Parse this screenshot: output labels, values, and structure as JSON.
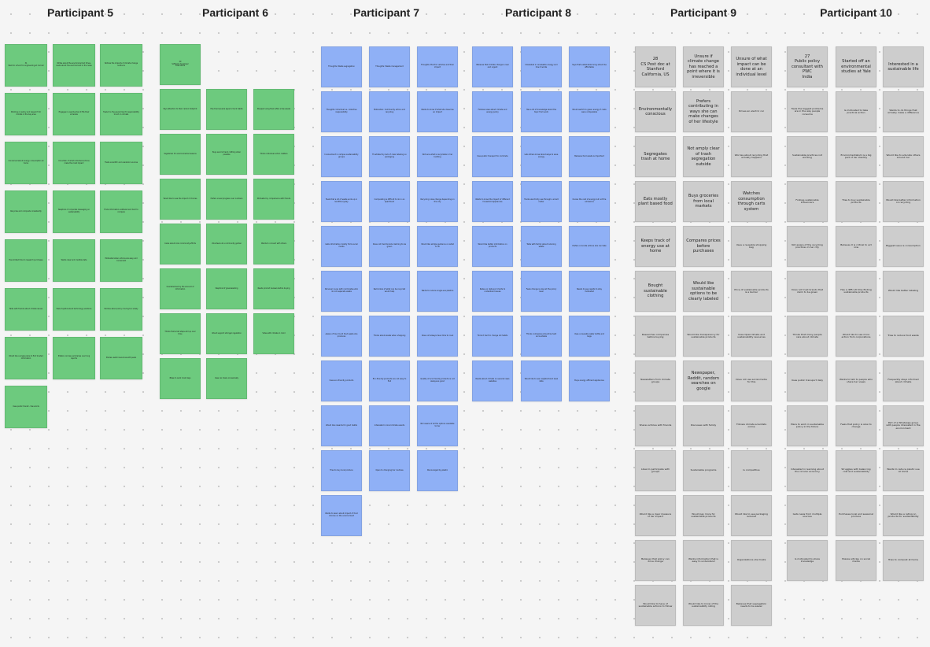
{
  "board": {
    "columns": [
      {
        "title": "Participant 5",
        "color": "#6dca7e",
        "notes": [
          [
            "31",
            "Went to school for engineering at Cornell",
            "Writes about the environment at times, reads about the environment in the news",
            "Notices the impacts of climate change outdoors"
          ],
          [
            "Working on policy and research for climate in the bay area",
            "Engages in events when it fits their schedule",
            "Feels it is the government's responsibility to act on climate"
          ],
          [
            "Concerned about energy consumption at home",
            "Uncertain of what individual actions make the most impact",
            "Trusts scientific and academic sources"
          ],
          [
            "Recycles and composts consistently",
            "Skeptical of corporate messaging on sustainability",
            "Finds information scattered and hard to compare"
          ],
          [
            "Has limited time to research purchases",
            "Wants clear and credible data",
            "Motivated when actions are easy and convenient"
          ],
          [
            "Talks with friends about climate issues",
            "Feels hopeful about technology solutions",
            "Worries about policy moving too slowly"
          ],
          [
            "Would like a single place to find trusted information",
            "Prefers concise summaries over long reports",
            "Shares useful resources with peers"
          ],
          [
            "Uses public transit - few words"
          ]
        ]
      },
      {
        "title": "Participant 6",
        "color": "#6dca7e",
        "notes": [
          [
            "29",
            "Software developer",
            "Lives alone"
          ],
          [
            "Pays attention to their carbon footprint",
            "Has tried several apps to track habits",
            "Stopped using them after a few weeks"
          ],
          [
            "Vegetarian for environmental reasons",
            "Buys second hand clothing when possible",
            "Thinks individual action matters"
          ],
          [
            "Would like to see the impact of choices",
            "Prefers visual progress over numbers",
            "Motivated by comparisons with friends"
          ],
          [
            "Cares about local community efforts",
            "Volunteers at a community garden",
            "Wants to connect with others"
          ],
          [
            "Overwhelmed by the amount of information",
            "Skeptical of greenwashing",
            "Reads product reviews before buying"
          ],
          [
            "Thinks that small steps add up over time",
            "Would support stronger regulation",
            "Votes with climate in mind"
          ],
          [
            "Bikes to work most days",
            "Uses car share occasionally"
          ]
        ]
      },
      {
        "title": "Participant 7",
        "color": "#8fb0f6",
        "notes": [
          [
            "Thoughts: Waste segregation",
            "Thoughts: Waste management",
            "Thoughts: Electric vehicles and their impact"
          ],
          [
            "Thoughts: Individual vs. collective responsibility",
            "Motivation: Community action and recycling",
            "Wants to know if what she does has an impact"
          ],
          [
            "Involvement in campus sustainability groups",
            "Frustrated by lack of clear labeling on packaging",
            "Not sure what is recyclable in her building"
          ],
          [
            "Feels that a lot of waste ends up in landfill anyway",
            "Composting is difficult to do in an apartment",
            "Recycling rules change depending on the city"
          ],
          [
            "Gets information mostly from social media",
            "Does not trust brands claiming to be green",
            "Would like simple guidance on what to do"
          ],
          [
            "Personal: Lives with roommates who do not separate waste",
            "Reminders of what can be recycled would help",
            "Wants to reduce single-use plastics"
          ],
          [
            "Aware of how much food waste she produces",
            "Thinks about waste when shopping",
            "Does not always have time to cook"
          ],
          [
            "Uses eco-friendly products",
            "Eco-friendly products are not easy to find",
            "Quality of eco-friendly products is not always as good"
          ],
          [
            "Would like rewards for good habits",
            "Interested in local climate events",
            "Not aware of all the options available to her"
          ],
          [
            "Tries to buy local produce",
            "Open to changing her routines",
            "Discouraged by plastic"
          ],
          [
            "Wants to learn about impact of food choices on the environment"
          ]
        ]
      },
      {
        "title": "Participant 8",
        "color": "#8fb0f6",
        "notes": [
          [
            "Believes that climate change is real and urgent",
            "Interested in renewable energy and how it works",
            "Says that sustainable living should be affordable"
          ],
          [
            "Follows news about climate and energy policy",
            "Has a lot of knowledge about the topic from work",
            "Would switch to green energy if costs were comparable"
          ],
          [
            "Uses public transport to commute",
            "Lets others know about ways to save energy",
            "Believes food waste is important"
          ],
          [
            "Wants to know the impact of different household appliances",
            "Tracks electricity use through a smart meter",
            "Knows the cost of energy but not the emissions"
          ],
          [
            "Would like better information on products",
            "Talks with family about reducing waste",
            "Prefers concrete actions she can take"
          ],
          [
            "Relies on data and charts to understand issues",
            "Feels change is slow at the policy level",
            "Needs to see results to stay motivated"
          ],
          [
            "Finds it hard to change old habits",
            "Thinks companies should be held accountable",
            "Uses a reusable water bottle and bags"
          ],
          [
            "Reads about climate on several news websites",
            "Would like to see neighborhood level data",
            "Buys energy efficient appliances"
          ]
        ]
      },
      {
        "title": "Participant 9",
        "color": "#cdcdcd",
        "notes": [
          [
            "28",
            "CS Post doc at Stanford",
            "California, US",
            "Unsure if climate change has reached a point where it is irreversible",
            "Unsure of what impact can be done at an individual level"
          ],
          [
            "Environmentally conscious",
            "Prefers contributing in ways she can make changes of her lifestyle",
            "Drives an electric car"
          ],
          [
            "Segregates trash at home",
            "Not amply clear of trash segregation outside",
            "Worries about recycling that actually happens"
          ],
          [
            "Eats mostly plant based food",
            "Buys groceries from local markets",
            "Watches consumption through carts system"
          ],
          [
            "Keeps track of energy use at home",
            "Compares prices before purchases",
            "Uses a reusable shopping bag"
          ],
          [
            "Bought sustainable clothing",
            "Would like sustainable options to be clearly labeled",
            "Price of sustainable products is a barrier"
          ],
          [
            "Researches companies before buying",
            "Would like transparency for sustainable products",
            "Uses Openclimate and sustainability resources"
          ],
          [
            "Newsletters from climate groups",
            "Newspaper, Reddit, random searches on google",
            "Does not use social media for this"
          ],
          [
            "Shares articles with friends",
            "Discusses with family",
            "Follows climate scientists online"
          ],
          [
            "Likes to participate with groups",
            "Sustainable programs",
            "Is competitive"
          ],
          [
            "Would like a clear measure of her impact",
            "Would pay more for sustainable products",
            "Would like to see packaging reduced"
          ],
          [
            "Believes that policy can drive change",
            "Wants information that is easy to understand",
            "Organizations she trusts"
          ],
          [
            "Would like to have of sustainable actions to follow",
            "Would like to know of the sustainability rating",
            "Believes that segregation needs to be easier"
          ]
        ]
      },
      {
        "title": "Participant 10",
        "color": "#cdcdcd",
        "notes": [
          [
            "27",
            "Public policy consultant with PWC",
            "India",
            "Started off an environmental studies at Yale",
            "Interested in a sustainable life"
          ],
          [
            "Feels the biggest problems are in the way people consume",
            "Is motivated to take practical action",
            "Wants to do things that actually make a difference"
          ],
          [
            "Sustainable practices not working",
            "Environmentalism is a big part of her identity",
            "Would like to educate others around her"
          ],
          [
            "Follows sustainable influencers",
            "Tries to buy sustainable products",
            "Would like better information on recycling"
          ],
          [
            "Not aware of the recycling practices in her city",
            "Believes it is critical to act now",
            "Biggest issue is consumption"
          ],
          [
            "Does not trust brands that claim to be green",
            "Has a difficult time finding sustainable products",
            "Would like better labeling"
          ],
          [
            "Thinks that many people care about climate",
            "Would like to see more action from corporations",
            "Tries to reduce food waste"
          ],
          [
            "Uses public transport daily",
            "Wants to talk to people who share her views",
            "Frequently stays informed about climate"
          ],
          [
            "Plans to work in sustainable policy in the future",
            "Feels that policy is slow to change",
            "Part of a WhatsApp group with people interested in the environment"
          ],
          [
            "Interested in learning about the circular economy",
            "Struggles with balancing cost and sustainability",
            "Wants to reduce plastic use at home"
          ],
          [
            "Gets news from multiple sources",
            "Purchases local and seasonal produce",
            "Would like a rating on products for sustainability"
          ],
          [
            "Is motivated to share knowledge",
            "Shares articles on social media",
            "Tries to compost at home"
          ]
        ]
      }
    ]
  }
}
